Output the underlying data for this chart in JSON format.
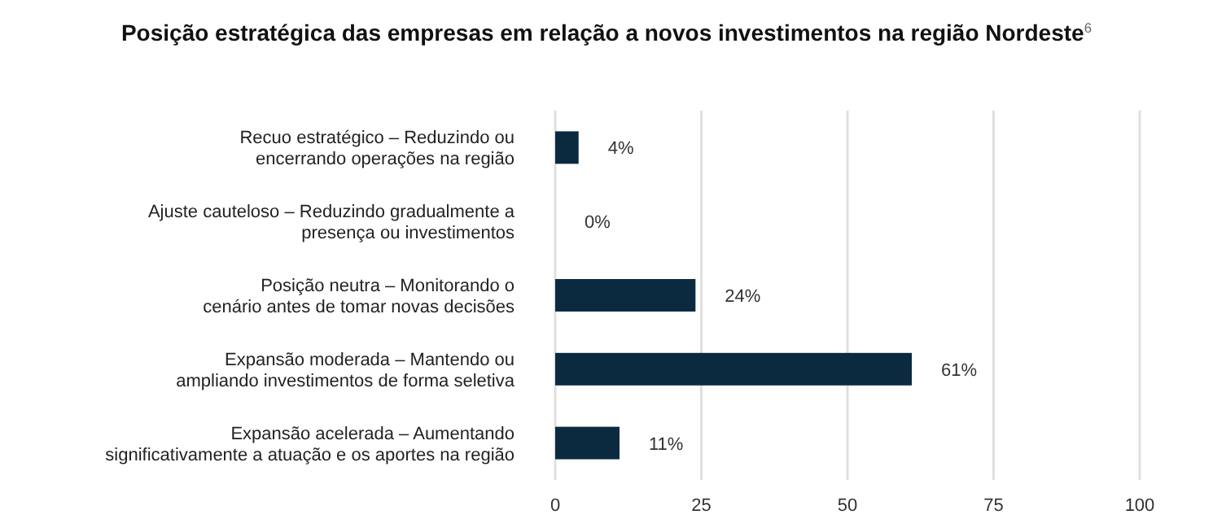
{
  "chart_data": {
    "type": "bar",
    "orientation": "horizontal",
    "title": "Posição estratégica das empresas em relação a novos investimentos na região Nordeste$^{6}$",
    "categories": [
      "Recuo estratégico – Reduzindo ou\nencerrando operações na região",
      "Ajuste cauteloso – Reduzindo gradualmente a\npresença ou investimentos",
      "Posição neutra – Monitorando o\ncenário antes de tomar novas decisões",
      "Expansão moderada – Mantendo ou\nampliando investimentos de forma seletiva",
      "Expansão acelerada – Aumentando\nsignificativamente a atuação e os aportes na região"
    ],
    "values": [
      4,
      0,
      24,
      61,
      11
    ],
    "value_labels": [
      "4%",
      "0%",
      "24%",
      "61%",
      "11%"
    ],
    "color": "#0b2a40",
    "xlim": [
      0,
      100
    ],
    "xticks": [
      0,
      25,
      50,
      75,
      100
    ],
    "grid": "x"
  }
}
